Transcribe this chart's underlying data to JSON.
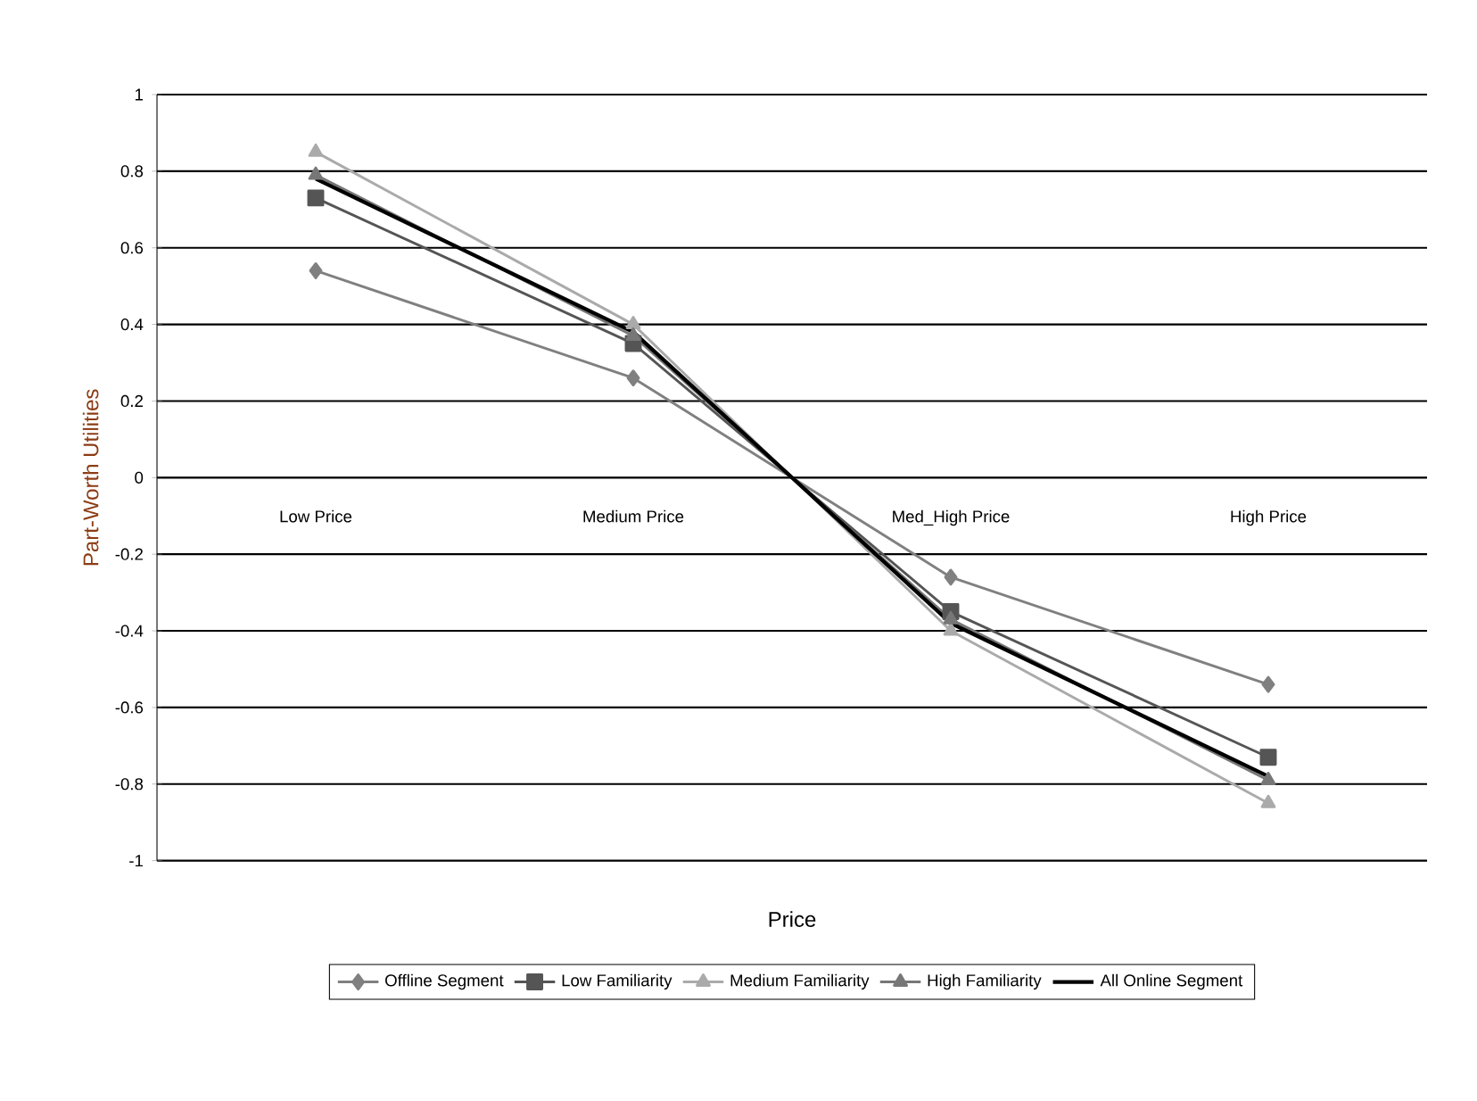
{
  "chart_data": {
    "type": "line",
    "xlabel": "Price",
    "ylabel": "Part-Worth Utilities",
    "categories": [
      "Low Price",
      "Medium Price",
      "Med_High Price",
      "High Price"
    ],
    "series": [
      {
        "name": "Offline Segment",
        "color": "#808080",
        "marker": "diamond",
        "values": [
          0.54,
          0.26,
          -0.26,
          -0.54
        ]
      },
      {
        "name": "Low Familiarity",
        "color": "#555555",
        "marker": "square",
        "values": [
          0.73,
          0.35,
          -0.35,
          -0.73
        ]
      },
      {
        "name": "Medium Familiarity",
        "color": "#aaaaaa",
        "marker": "triangle",
        "values": [
          0.85,
          0.4,
          -0.4,
          -0.85
        ]
      },
      {
        "name": "High Familiarity",
        "color": "#777777",
        "marker": "triangle",
        "values": [
          0.79,
          0.37,
          -0.37,
          -0.79
        ]
      },
      {
        "name": "All Online Segment",
        "color": "#000000",
        "marker": "none",
        "values": [
          0.78,
          0.38,
          -0.38,
          -0.78
        ]
      }
    ],
    "ylim": [
      -1,
      1
    ],
    "yticks": [
      -1,
      -0.8,
      -0.6,
      -0.4,
      -0.2,
      0,
      0.2,
      0.4,
      0.6,
      0.8,
      1
    ],
    "grid": "y",
    "legend": "bottom"
  }
}
